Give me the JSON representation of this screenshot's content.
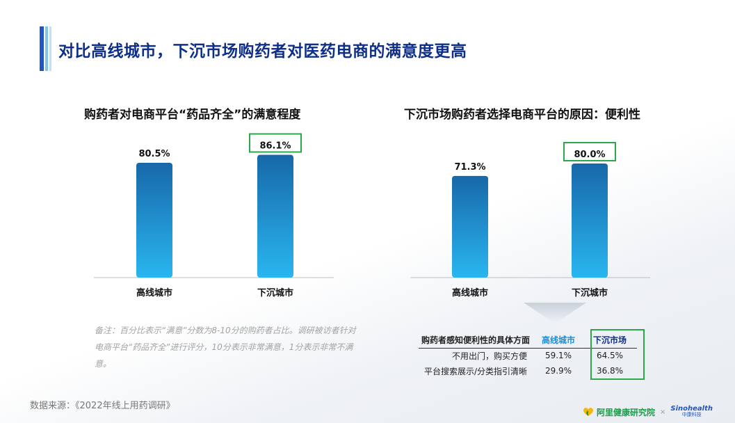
{
  "page_title": "对比高线城市，下沉市场购药者对医药电商的满意度更高",
  "chart_data": [
    {
      "type": "bar",
      "title": "购药者对电商平台“药品齐全”的满意程度",
      "categories": [
        "高线城市",
        "下沉城市"
      ],
      "values": [
        80.5,
        86.1
      ],
      "value_labels": [
        "80.5%",
        "86.1%"
      ],
      "unit": "%",
      "highlighted": "下沉城市",
      "ylim": [
        0,
        100
      ],
      "grid": false
    },
    {
      "type": "bar",
      "title": "下沉市场购药者选择电商平台的原因：便利性",
      "categories": [
        "高线城市",
        "下沉城市"
      ],
      "values": [
        71.3,
        80.0
      ],
      "value_labels": [
        "71.3%",
        "80.0%"
      ],
      "unit": "%",
      "highlighted": "下沉城市",
      "ylim": [
        0,
        100
      ],
      "grid": false
    },
    {
      "type": "table",
      "columns": [
        "购药者感知便利性的具体方面",
        "高线城市",
        "下沉市场"
      ],
      "rows": [
        [
          "不用出门，购买方便",
          "59.1%",
          "64.5%"
        ],
        [
          "平台搜索展示/分类指引清晰",
          "29.9%",
          "36.8%"
        ]
      ],
      "highlighted_column": "下沉市场"
    }
  ],
  "note": "备注：百分比表示“满意”分数为8-10分的购药者占比。调研被访者针对电商平台“药品齐全”进行评分，10分表示非常满意，1分表示非常不满意。",
  "source": "数据来源：《2022年线上用药调研》",
  "logo": {
    "alihealth": "阿里健康研究院",
    "times": "×",
    "sinohealth_en": "Sinohealth",
    "sinohealth_cn": "中康科技",
    "icon": "heart-logo-icon"
  },
  "colors": {
    "title": "#0d2f8a",
    "bar_top": "#1868a8",
    "bar_bottom": "#29b6f0",
    "highlight_box": "#2aa84a",
    "high_city_header": "#1b8fd6"
  }
}
